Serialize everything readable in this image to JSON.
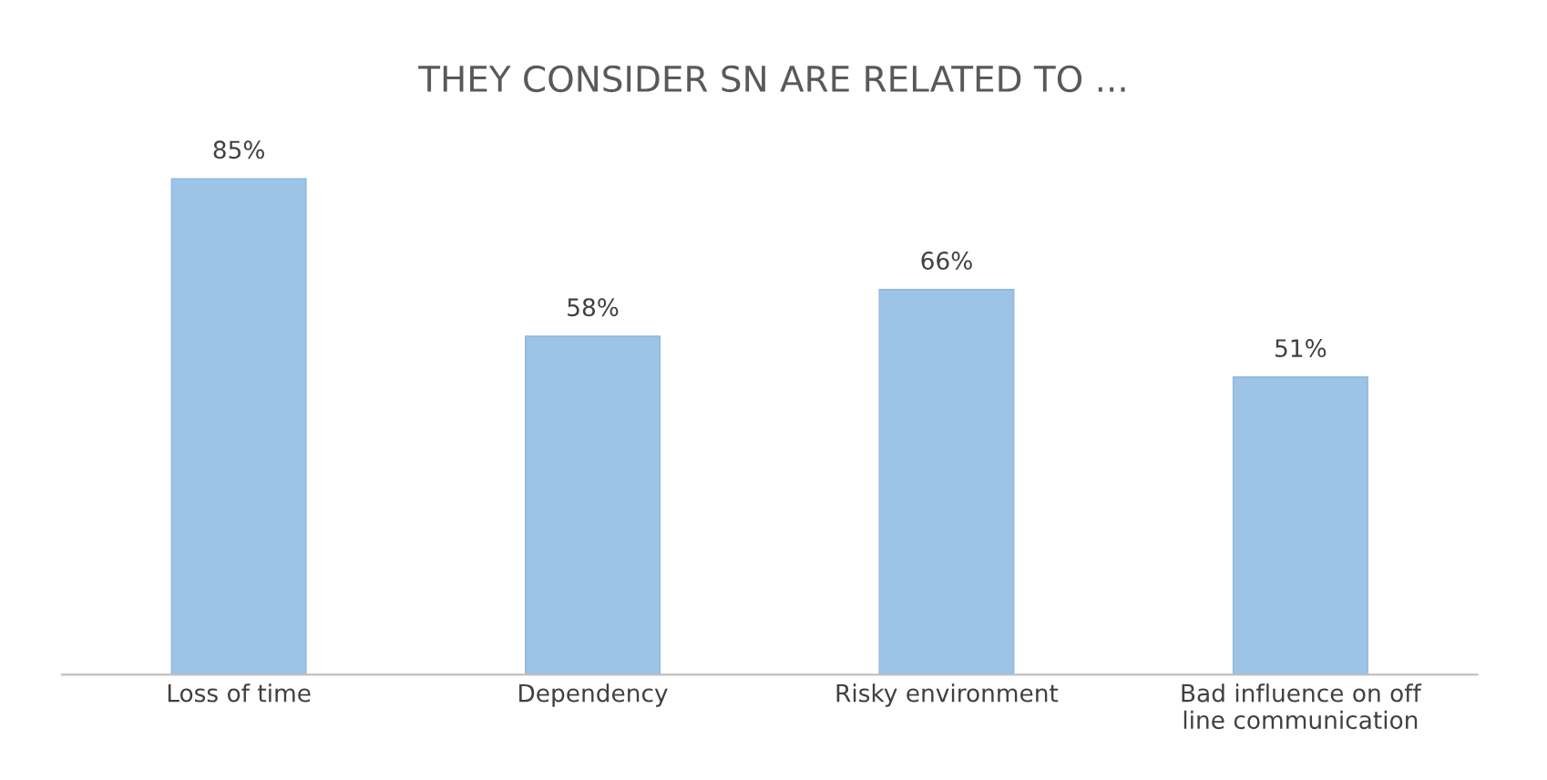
{
  "chart_data": {
    "type": "bar",
    "title": "THEY CONSIDER SN ARE RELATED TO ...",
    "categories": [
      "Loss of time",
      "Dependency",
      "Risky environment",
      "Bad influence on off\nline communication"
    ],
    "values": [
      85,
      58,
      66,
      51
    ],
    "value_labels": [
      "85%",
      "58%",
      "66%",
      "51%"
    ],
    "color": "#9dc3e6",
    "grid": false,
    "legend": false
  }
}
